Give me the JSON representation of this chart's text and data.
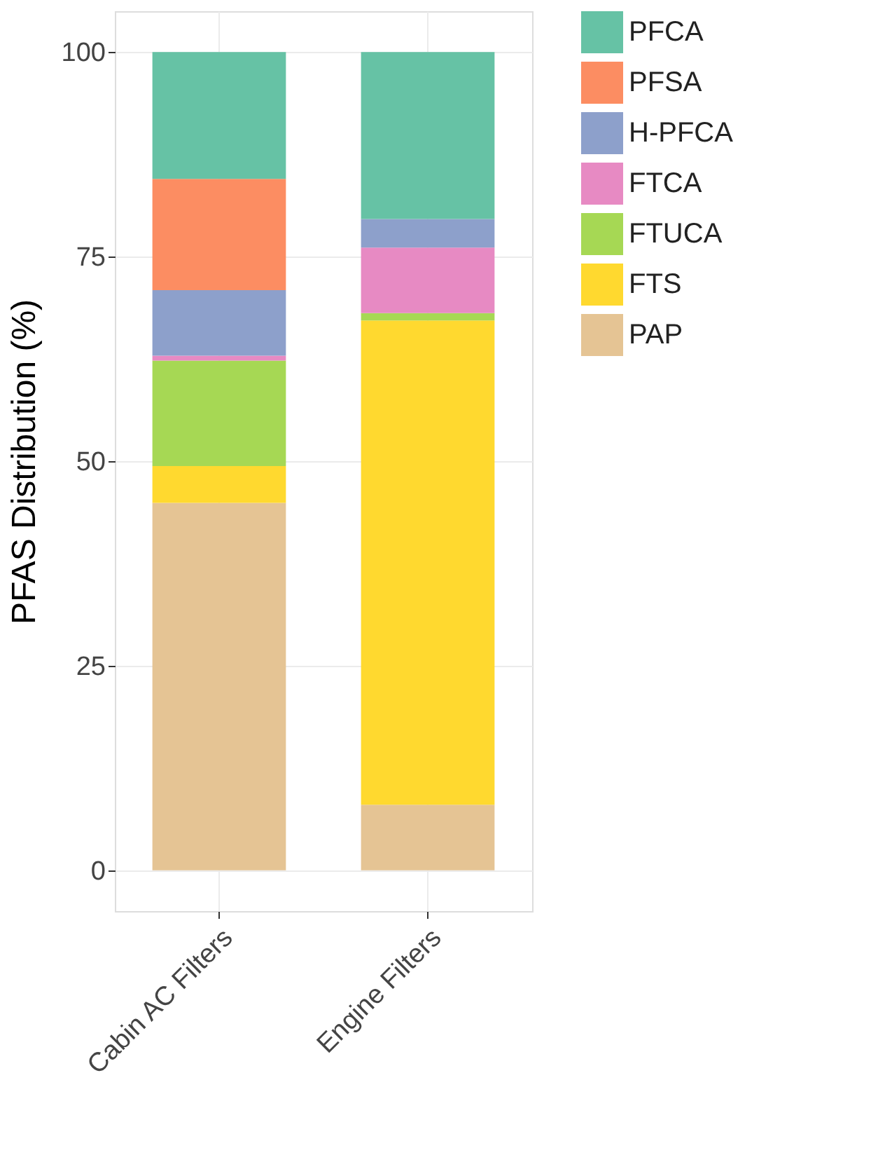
{
  "chart_data": {
    "type": "bar",
    "stacked": true,
    "ylabel": "PFAS Distribution (%)",
    "categories": [
      "Cabin AC Filters",
      "Engine Filters"
    ],
    "series": [
      {
        "name": "PAP",
        "color": "#e5c494",
        "values": [
          44.9,
          8.0
        ]
      },
      {
        "name": "FTS",
        "color": "#ffd92f",
        "values": [
          4.5,
          59.2
        ]
      },
      {
        "name": "FTUCA",
        "color": "#a6d854",
        "values": [
          12.9,
          0.9
        ]
      },
      {
        "name": "FTCA",
        "color": "#e78ac3",
        "values": [
          0.6,
          8.0
        ]
      },
      {
        "name": "H-PFCA",
        "color": "#8da0cb",
        "values": [
          8.0,
          3.5
        ]
      },
      {
        "name": "PFSA",
        "color": "#fc8d62",
        "values": [
          13.6,
          0
        ]
      },
      {
        "name": "PFCA",
        "color": "#66c2a5",
        "values": [
          15.5,
          20.4
        ]
      }
    ],
    "ylim": [
      -5,
      105
    ],
    "yticks": [
      0,
      25,
      50,
      75,
      100
    ],
    "grid": true,
    "legend": "right"
  }
}
